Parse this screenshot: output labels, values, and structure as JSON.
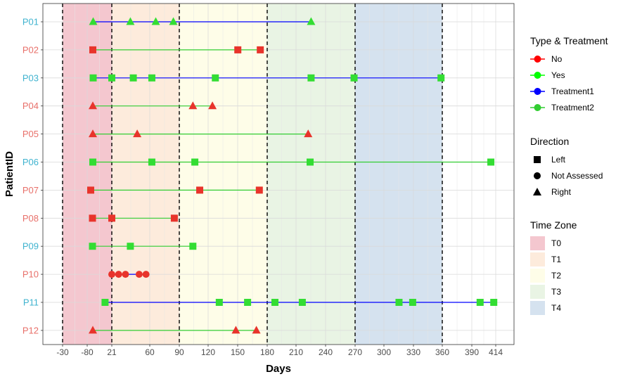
{
  "chart_data": {
    "type": "scatter",
    "xlabel": "Days",
    "ylabel": "PatientID",
    "x_tick_labels": [
      "-30",
      "-80",
      "21",
      "60",
      "90",
      "120",
      "150",
      "180",
      "210",
      "240",
      "270",
      "300",
      "330",
      "360",
      "390",
      "414"
    ],
    "zone_boundaries": [
      "-30",
      "21",
      "90",
      "180",
      "270",
      "360"
    ],
    "zones": [
      {
        "name": "T0",
        "from": "-30",
        "to": "21",
        "color": "#f4c7cf"
      },
      {
        "name": "T1",
        "from": "21",
        "to": "90",
        "color": "#fdebdc"
      },
      {
        "name": "T2",
        "from": "90",
        "to": "180",
        "color": "#fefde8"
      },
      {
        "name": "T3",
        "from": "180",
        "to": "270",
        "color": "#e9f4e4"
      },
      {
        "name": "T4",
        "from": "270",
        "to": "360",
        "color": "#d5e2ef"
      }
    ],
    "patients": [
      {
        "id": "P01",
        "type": "Yes",
        "treatment": "Treatment1",
        "points": [
          {
            "x": -75,
            "shape": "triangle"
          },
          {
            "x": 40,
            "shape": "triangle"
          },
          {
            "x": 66,
            "shape": "triangle"
          },
          {
            "x": 84,
            "shape": "triangle"
          },
          {
            "x": 225,
            "shape": "triangle"
          }
        ]
      },
      {
        "id": "P02",
        "type": "No",
        "treatment": "Treatment2",
        "points": [
          {
            "x": -76,
            "shape": "square"
          },
          {
            "x": 150,
            "shape": "square"
          },
          {
            "x": 173,
            "shape": "square"
          }
        ]
      },
      {
        "id": "P03",
        "type": "Yes",
        "treatment": "Treatment1",
        "points": [
          {
            "x": -75,
            "shape": "square"
          },
          {
            "x": 21,
            "shape": "square"
          },
          {
            "x": 43,
            "shape": "square"
          },
          {
            "x": 62,
            "shape": "square"
          },
          {
            "x": 127,
            "shape": "square"
          },
          {
            "x": 225,
            "shape": "square"
          },
          {
            "x": 269,
            "shape": "square"
          },
          {
            "x": 358,
            "shape": "square"
          }
        ]
      },
      {
        "id": "P04",
        "type": "No",
        "treatment": "Treatment2",
        "points": [
          {
            "x": -76,
            "shape": "triangle"
          },
          {
            "x": 104,
            "shape": "triangle"
          },
          {
            "x": 124,
            "shape": "triangle"
          }
        ]
      },
      {
        "id": "P05",
        "type": "No",
        "treatment": "Treatment2",
        "points": [
          {
            "x": -76,
            "shape": "triangle"
          },
          {
            "x": 47,
            "shape": "triangle"
          },
          {
            "x": 222,
            "shape": "triangle"
          }
        ]
      },
      {
        "id": "P06",
        "type": "Yes",
        "treatment": "Treatment2",
        "points": [
          {
            "x": -76,
            "shape": "square"
          },
          {
            "x": 62,
            "shape": "square"
          },
          {
            "x": 106,
            "shape": "square"
          },
          {
            "x": 224,
            "shape": "square"
          },
          {
            "x": 409,
            "shape": "square"
          }
        ]
      },
      {
        "id": "P07",
        "type": "No",
        "treatment": "Treatment2",
        "points": [
          {
            "x": -82,
            "shape": "square"
          },
          {
            "x": 111,
            "shape": "square"
          },
          {
            "x": 172,
            "shape": "square"
          }
        ]
      },
      {
        "id": "P08",
        "type": "No",
        "treatment": "Treatment2",
        "points": [
          {
            "x": -77,
            "shape": "square"
          },
          {
            "x": 21,
            "shape": "square"
          },
          {
            "x": 85,
            "shape": "square"
          }
        ]
      },
      {
        "id": "P09",
        "type": "Yes",
        "treatment": "Treatment2",
        "points": [
          {
            "x": -77,
            "shape": "square"
          },
          {
            "x": 40,
            "shape": "square"
          },
          {
            "x": 104,
            "shape": "square"
          }
        ]
      },
      {
        "id": "P10",
        "type": "No",
        "treatment": "Treatment1",
        "points": [
          {
            "x": 21,
            "shape": "circle"
          },
          {
            "x": 28,
            "shape": "circle"
          },
          {
            "x": 35,
            "shape": "circle"
          },
          {
            "x": 49,
            "shape": "circle"
          },
          {
            "x": 56,
            "shape": "circle"
          }
        ]
      },
      {
        "id": "P11",
        "type": "Yes",
        "treatment": "Treatment1",
        "points": [
          {
            "x": 14,
            "shape": "square"
          },
          {
            "x": 131,
            "shape": "square"
          },
          {
            "x": 160,
            "shape": "square"
          },
          {
            "x": 188,
            "shape": "square"
          },
          {
            "x": 216,
            "shape": "square"
          },
          {
            "x": 315,
            "shape": "square"
          },
          {
            "x": 329,
            "shape": "square"
          },
          {
            "x": 398,
            "shape": "square"
          },
          {
            "x": 412,
            "shape": "square"
          }
        ]
      },
      {
        "id": "P12",
        "type": "No",
        "treatment": "Treatment2",
        "points": [
          {
            "x": -76,
            "shape": "triangle"
          },
          {
            "x": 148,
            "shape": "triangle"
          },
          {
            "x": 169,
            "shape": "triangle"
          }
        ]
      }
    ],
    "legends": [
      {
        "title": "Type & Treatment",
        "kind": "line",
        "items": [
          {
            "label": "No",
            "color": "#ff0000",
            "marker": true
          },
          {
            "label": "Yes",
            "color": "#00ff00",
            "marker": true
          },
          {
            "label": "Treatment1",
            "color": "#0000ff",
            "marker": true
          },
          {
            "label": "Treatment2",
            "color": "#32cd32",
            "marker": true
          }
        ]
      },
      {
        "title": "Direction",
        "kind": "shape",
        "items": [
          {
            "label": "Left",
            "shape": "square"
          },
          {
            "label": "Not Assessed",
            "shape": "circle"
          },
          {
            "label": "Right",
            "shape": "triangle"
          }
        ]
      },
      {
        "title": "Time Zone",
        "kind": "fill",
        "items": [
          {
            "label": "T0",
            "color": "#f4c7cf"
          },
          {
            "label": "T1",
            "color": "#fdebdc"
          },
          {
            "label": "T2",
            "color": "#fefde8"
          },
          {
            "label": "T3",
            "color": "#e9f4e4"
          },
          {
            "label": "T4",
            "color": "#d5e2ef"
          }
        ]
      }
    ],
    "colors": {
      "type_no": "#e8342b",
      "type_yes": "#33dd33",
      "treatment1": "#0000ff",
      "treatment2": "#32cd32",
      "label_yes": "#3fb3cf",
      "label_no": "#e8706a",
      "zone_line": "#000000"
    },
    "grid": true,
    "legend_position": "right"
  }
}
